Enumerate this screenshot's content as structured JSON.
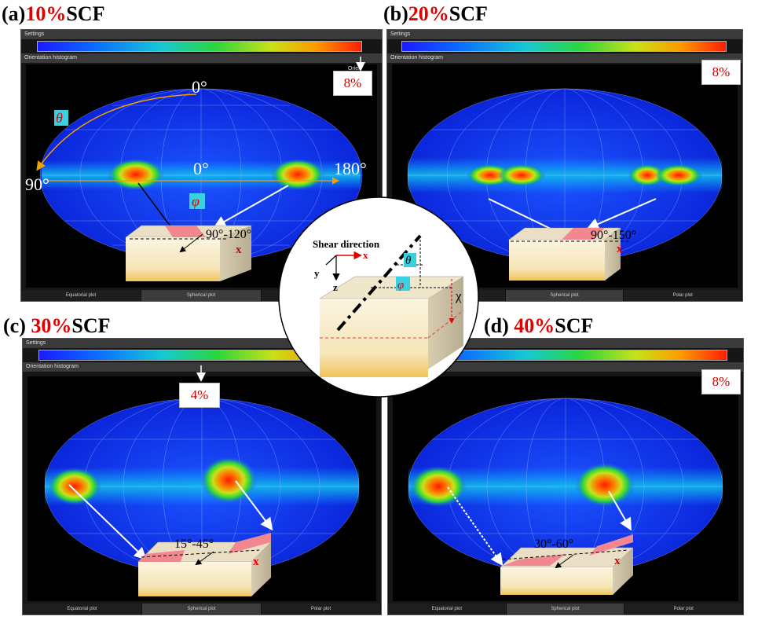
{
  "panels": {
    "a": {
      "letter": "(a)",
      "pct": "10%",
      "scf": "SCF",
      "callout": "8%",
      "range": "90°-120°"
    },
    "b": {
      "letter": "(b)",
      "pct": "20%",
      "scf": "SCF",
      "callout": "8%",
      "range": "90°-150°"
    },
    "c": {
      "letter": "(c) ",
      "pct": "30%",
      "scf": "SCF",
      "callout": "4%",
      "range": "15°-45°"
    },
    "d": {
      "letter": "(d) ",
      "pct": "40%",
      "scf": "SCF",
      "callout": "8%",
      "range": "30°-60°"
    }
  },
  "window": {
    "settings": "Settings",
    "orientation_histogram": "Orientation histogram",
    "orient_short": "Orien",
    "tabs": [
      "Equatorial plot",
      "Spherical plot",
      "Polar plot"
    ]
  },
  "annotations": {
    "theta": "θ",
    "phi": "φ",
    "zero_top": "0°",
    "zero_center": "0°",
    "one_eighty": "180°",
    "ninety": "90°",
    "x_axis": "x"
  },
  "inset": {
    "title": "Shear direction",
    "x": "x",
    "y": "y",
    "z": "z",
    "theta": "θ",
    "phi": "φ",
    "chi": "χ"
  },
  "colors": {
    "highlight": "#e00000",
    "callout_text": "#d00000",
    "sphere_blue": "#0a3cff",
    "hot": "#ff1a00",
    "annotation_orange": "#f0a000",
    "annotation_cyan": "#39d0e0"
  }
}
